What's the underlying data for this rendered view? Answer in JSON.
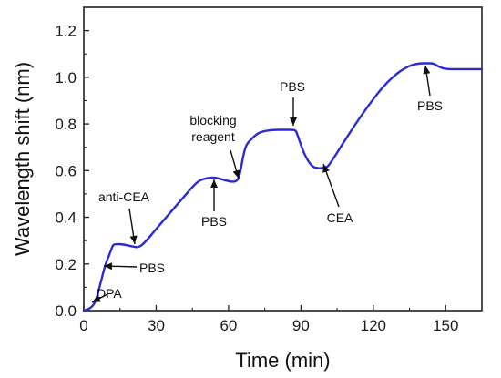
{
  "chart_data": {
    "type": "line",
    "xlabel": "Time (min)",
    "ylabel": "Wavelength shift (nm)",
    "xlim": [
      0,
      165
    ],
    "ylim": [
      0,
      1.3
    ],
    "xticks": [
      0,
      30,
      60,
      90,
      120,
      150
    ],
    "yticks": [
      0.0,
      0.2,
      0.4,
      0.6,
      0.8,
      1.0,
      1.2
    ],
    "xtick_labels": [
      "0",
      "30",
      "60",
      "90",
      "120",
      "150"
    ],
    "ytick_labels": [
      "0.0",
      "0.2",
      "0.4",
      "0.6",
      "0.8",
      "1.0",
      "1.2"
    ],
    "grid": false,
    "series": [
      {
        "color": "#2b2bd6",
        "x": [
          0,
          3,
          5,
          7,
          9,
          11,
          12,
          13,
          16,
          20,
          23,
          26,
          30,
          35,
          40,
          45,
          48,
          52,
          55,
          58,
          62,
          64,
          65,
          66,
          67,
          68,
          70,
          72,
          75,
          79,
          84,
          87,
          88,
          89,
          91,
          93,
          95,
          97,
          99,
          101,
          102,
          104,
          107,
          112,
          118,
          124,
          130,
          135,
          139,
          142,
          145,
          147,
          150,
          155,
          160,
          165
        ],
        "y": [
          0.0,
          0.01,
          0.04,
          0.12,
          0.2,
          0.25,
          0.28,
          0.285,
          0.285,
          0.275,
          0.27,
          0.3,
          0.35,
          0.41,
          0.47,
          0.53,
          0.56,
          0.57,
          0.57,
          0.56,
          0.55,
          0.56,
          0.6,
          0.66,
          0.7,
          0.72,
          0.74,
          0.76,
          0.77,
          0.775,
          0.775,
          0.775,
          0.77,
          0.74,
          0.68,
          0.64,
          0.615,
          0.61,
          0.61,
          0.615,
          0.63,
          0.66,
          0.71,
          0.79,
          0.88,
          0.96,
          1.02,
          1.05,
          1.06,
          1.06,
          1.06,
          1.045,
          1.035,
          1.035,
          1.035,
          1.035
        ]
      }
    ],
    "annotations": [
      {
        "text": "DPA",
        "x": 4,
        "y": 0.02
      },
      {
        "text": "PBS",
        "x": 9,
        "y": 0.2
      },
      {
        "text": "anti-CEA",
        "x": 23,
        "y": 0.27
      },
      {
        "text": "PBS",
        "x": 53,
        "y": 0.57
      },
      {
        "text": "blocking",
        "x": 65,
        "y": 0.56
      },
      {
        "text": "reagent",
        "x": 65,
        "y": 0.56
      },
      {
        "text": "PBS",
        "x": 87,
        "y": 0.775
      },
      {
        "text": "CEA",
        "x": 99,
        "y": 0.61
      },
      {
        "text": "PBS",
        "x": 145,
        "y": 1.06
      }
    ]
  }
}
